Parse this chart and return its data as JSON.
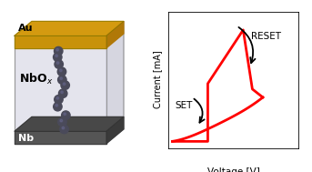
{
  "figure_width": 3.43,
  "figure_height": 1.89,
  "dpi": 100,
  "left_panel": {
    "au_color": "#C8920A",
    "au_top_color": "#D49A10",
    "au_right_color": "#B07808",
    "nb_color": "#555555",
    "nb_top_color": "#484848",
    "nb_right_color": "#3A3A3A",
    "box_face_color": "#DCDCE8",
    "box_right_color": "#C0C0D0",
    "box_top_color": "#DCDCE8",
    "sphere_color": "#4A4A5A",
    "sphere_highlight": "#7070A0",
    "au_label": "Au",
    "nb_label": "Nb",
    "nbox_label": "NbO$_x$"
  },
  "right_panel": {
    "curve_color": "#FF0000",
    "arrow_color": "#000000",
    "xlabel": "Voltage [V]",
    "ylabel": "Current [mA]",
    "set_label": "SET",
    "reset_label": "RESET",
    "background": "#FFFFFF"
  }
}
